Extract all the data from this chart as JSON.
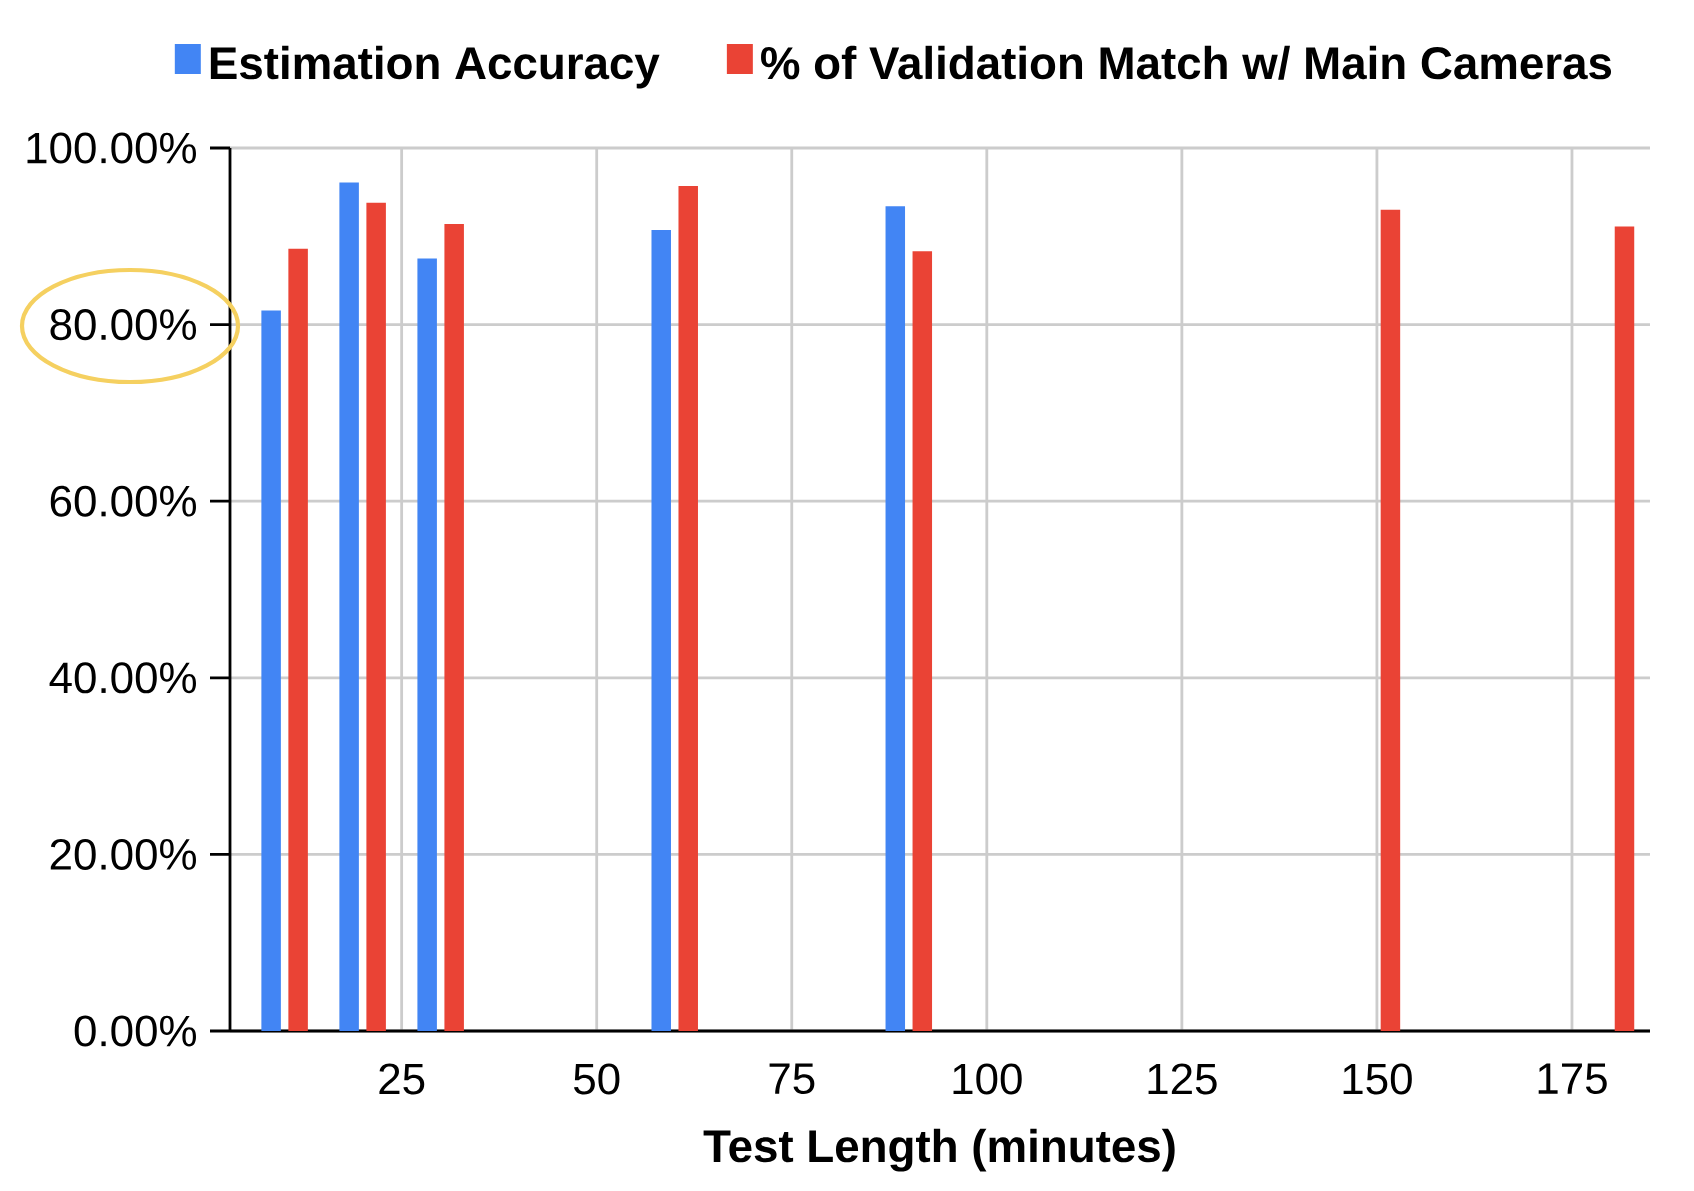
{
  "chart_data": {
    "type": "bar",
    "xlabel": "Test Length (minutes)",
    "x": [
      10,
      20,
      30,
      60,
      90,
      150,
      180
    ],
    "series": [
      {
        "name": "Estimation Accuracy",
        "color": "#4285f4",
        "values": [
          81.6,
          96.1,
          87.5,
          90.7,
          93.4,
          null,
          null
        ]
      },
      {
        "name": "% of Validation Match w/ Main Cameras",
        "color": "#ea4335",
        "values": [
          88.6,
          93.8,
          91.4,
          95.7,
          88.3,
          93.0,
          91.1
        ]
      }
    ],
    "xlim": [
      3,
      185
    ],
    "xticks": [
      25,
      50,
      75,
      100,
      125,
      150,
      175
    ],
    "ylim": [
      0,
      100
    ],
    "yticks": [
      {
        "value": 0,
        "label": "0.00%"
      },
      {
        "value": 20,
        "label": "20.00%"
      },
      {
        "value": 40,
        "label": "40.00%"
      },
      {
        "value": 60,
        "label": "60.00%"
      },
      {
        "value": 80,
        "label": "80.00%"
      },
      {
        "value": 100,
        "label": "100.00%"
      }
    ],
    "grid": true,
    "legend": "top"
  }
}
